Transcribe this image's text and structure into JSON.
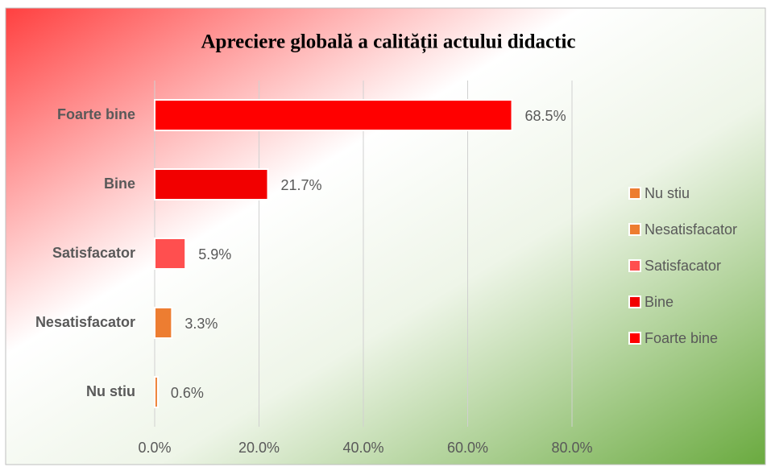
{
  "chart_data": {
    "type": "bar",
    "orientation": "horizontal",
    "title": "Apreciere globală a calității actului didactic",
    "categories": [
      "Foarte bine",
      "Bine",
      "Satisfacator",
      "Nesatisfacator",
      "Nu stiu"
    ],
    "values": [
      68.5,
      21.7,
      5.9,
      3.3,
      0.6
    ],
    "value_labels": [
      "68.5%",
      "21.7%",
      "5.9%",
      "3.3%",
      "0.6%"
    ],
    "colors": [
      "#ff0000",
      "#f20000",
      "#ff4f4f",
      "#ed7d31",
      "#ed7d31"
    ],
    "xlim": [
      0,
      80
    ],
    "xticks": [
      {
        "value": 0,
        "label": "0.0%"
      },
      {
        "value": 20,
        "label": "20.0%"
      },
      {
        "value": 40,
        "label": "40.0%"
      },
      {
        "value": 60,
        "label": "60.0%"
      },
      {
        "value": 80,
        "label": "80.0%"
      }
    ],
    "grid": true,
    "legend": "right"
  }
}
